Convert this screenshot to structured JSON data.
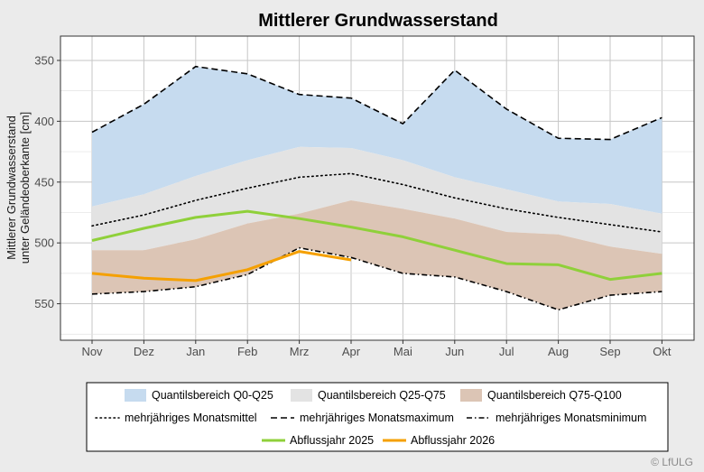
{
  "chart_data": {
    "type": "area",
    "title": "Mittlerer Grundwasserstand",
    "ylabel_lines": [
      "Mittlerer Grundwasserstand",
      "unter Geländeoberkante [cm]"
    ],
    "xlabel": "",
    "categories": [
      "Nov",
      "Dez",
      "Jan",
      "Feb",
      "Mrz",
      "Apr",
      "Mai",
      "Jun",
      "Jul",
      "Aug",
      "Sep",
      "Okt"
    ],
    "y_reversed": true,
    "ylim": [
      330,
      580
    ],
    "yticks": [
      350,
      400,
      450,
      500,
      550
    ],
    "grid": true,
    "bands": [
      {
        "name": "Quantilsbereich Q0-Q25",
        "color": "#c6dbef",
        "lower": [
          409,
          386,
          355,
          361,
          378,
          381,
          402,
          358,
          390,
          414,
          415,
          397
        ],
        "upper": [
          470,
          460,
          445,
          432,
          421,
          422,
          432,
          446,
          456,
          466,
          468,
          476
        ]
      },
      {
        "name": "Quantilsbereich Q25-Q75",
        "color": "#e3e3e3",
        "lower": [
          470,
          460,
          445,
          432,
          421,
          422,
          432,
          446,
          456,
          466,
          468,
          476
        ],
        "upper": [
          506,
          506,
          497,
          484,
          476,
          465,
          472,
          480,
          491,
          493,
          503,
          509
        ]
      },
      {
        "name": "Quantilsbereich Q75-Q100",
        "color": "#dcc5b5",
        "lower": [
          506,
          506,
          497,
          484,
          476,
          465,
          472,
          480,
          491,
          493,
          503,
          509
        ],
        "upper": [
          542,
          540,
          536,
          526,
          504,
          512,
          525,
          528,
          540,
          555,
          543,
          540
        ]
      }
    ],
    "series": [
      {
        "name": "mehrjähriges Monatsmittel",
        "style": "dotted",
        "color": "#000000",
        "values": [
          486,
          477,
          465,
          455,
          446,
          443,
          452,
          463,
          472,
          479,
          485,
          491
        ]
      },
      {
        "name": "mehrjähriges Monatsmaximum",
        "style": "dashed",
        "color": "#000000",
        "values": [
          409,
          386,
          355,
          361,
          378,
          381,
          402,
          358,
          390,
          414,
          415,
          397
        ]
      },
      {
        "name": "mehrjähriges Monatsminimum",
        "style": "dashdot",
        "color": "#000000",
        "values": [
          542,
          540,
          536,
          526,
          504,
          512,
          525,
          528,
          540,
          555,
          543,
          540
        ]
      },
      {
        "name": "Abflussjahr 2025",
        "style": "solid",
        "color": "#8fd03a",
        "values": [
          498,
          488,
          479,
          474,
          480,
          487,
          495,
          506,
          517,
          518,
          530,
          525
        ]
      },
      {
        "name": "Abflussjahr 2026",
        "style": "solid",
        "color": "#f5a000",
        "values": [
          525,
          529,
          531,
          522,
          507,
          514,
          null,
          null,
          null,
          null,
          null,
          null
        ]
      }
    ],
    "legend_placement": "bottom",
    "credit": "© LfULG"
  }
}
